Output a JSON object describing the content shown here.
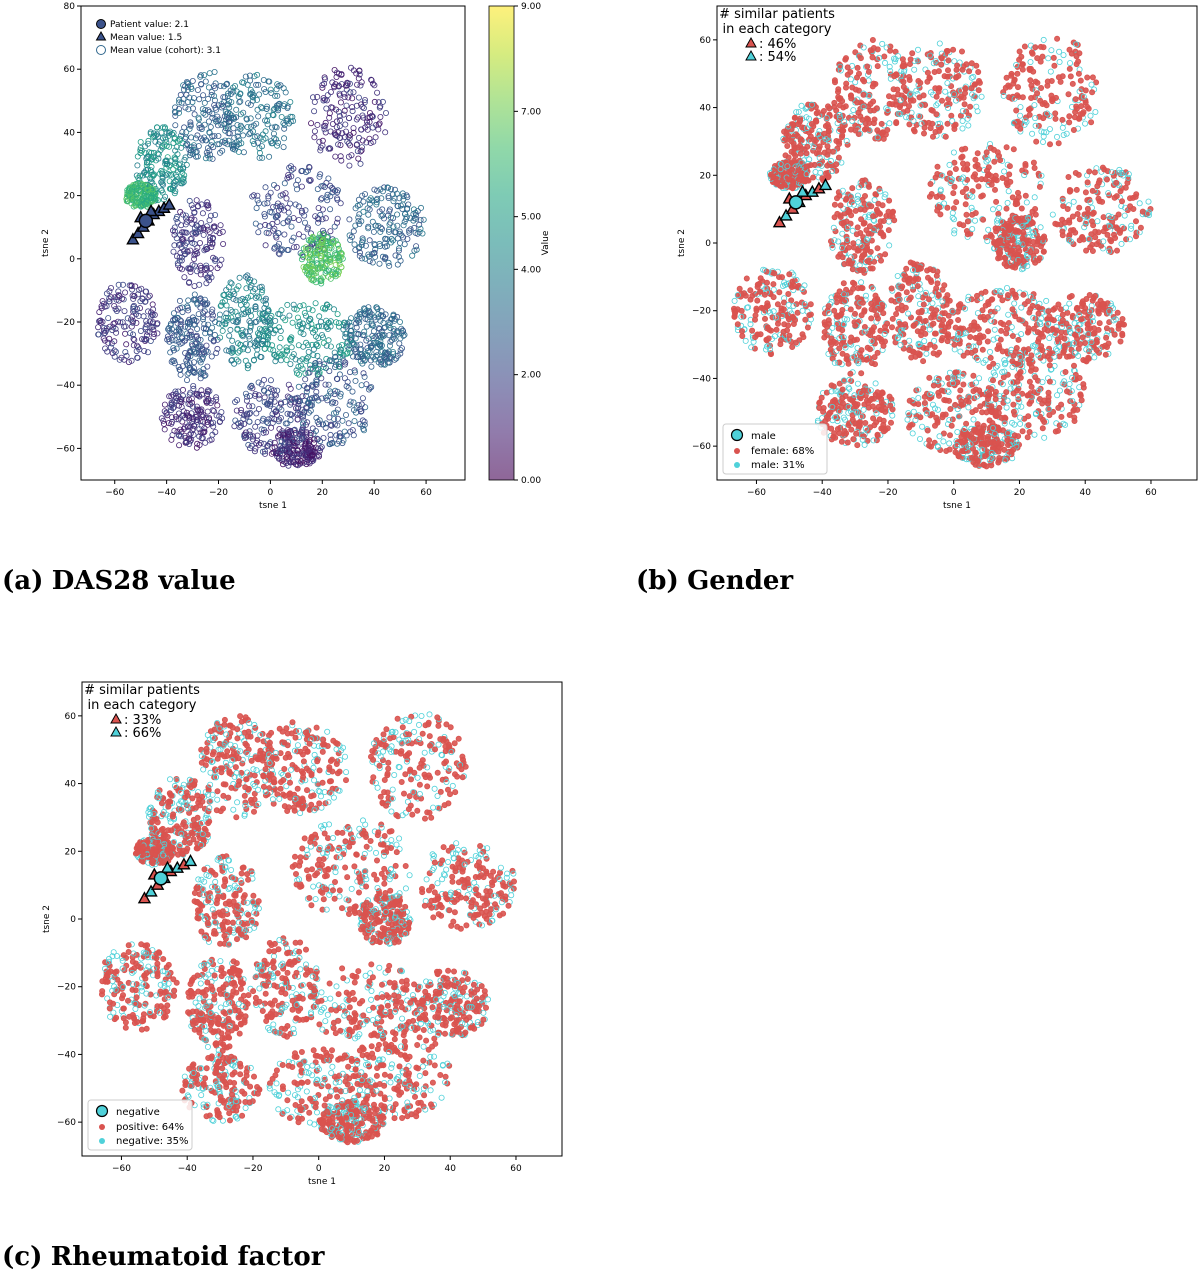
{
  "captions": {
    "a_label": "(a)",
    "a_text": "DAS28 value",
    "b_label": "(b)",
    "b_text": "Gender",
    "c_label": "(c)",
    "c_text": "Rheumatoid factor"
  },
  "chart_data": [
    {
      "id": "a",
      "type": "scatter",
      "xlabel": "tsne 1",
      "ylabel": "tsne 2",
      "xlim": [
        -73,
        75
      ],
      "ylim": [
        -70,
        80
      ],
      "xticks": [
        -60,
        -40,
        -20,
        0,
        20,
        40,
        60
      ],
      "yticks": [
        -60,
        -40,
        -20,
        0,
        20,
        40,
        60,
        80
      ],
      "colorbar": {
        "label": "Value",
        "range": [
          0,
          9
        ],
        "ticks": [
          "0.00",
          "2.00",
          "4.00",
          "5.00",
          "7.00",
          "9.00"
        ],
        "tick_values": [
          0,
          2,
          4,
          5,
          7,
          9
        ],
        "colormap": "viridis"
      },
      "legend": [
        "Patient value: 2.1",
        "Mean value: 1.5",
        "Mean value (cohort): 3.1"
      ],
      "legend_position": "top-left",
      "patient": {
        "x": -48,
        "y": 12,
        "value": 2.1
      },
      "similar_patients": [
        [
          -53,
          6
        ],
        [
          -51,
          8
        ],
        [
          -49,
          10
        ],
        [
          -47,
          12
        ],
        [
          -45,
          14
        ],
        [
          -43,
          15
        ],
        [
          -41,
          16
        ],
        [
          -39,
          17
        ],
        [
          -50,
          13
        ],
        [
          -46,
          15
        ]
      ],
      "clusters": [
        {
          "cx": 30,
          "cy": 45,
          "rx": 15,
          "ry": 16,
          "value": 1.2
        },
        {
          "cx": -5,
          "cy": 45,
          "rx": 14,
          "ry": 14,
          "value": 3.5
        },
        {
          "cx": -25,
          "cy": 45,
          "rx": 12,
          "ry": 15,
          "value": 3.0
        },
        {
          "cx": -42,
          "cy": 30,
          "rx": 10,
          "ry": 12,
          "value": 4.5
        },
        {
          "cx": -28,
          "cy": 5,
          "rx": 10,
          "ry": 14,
          "value": 1.5
        },
        {
          "cx": 10,
          "cy": 15,
          "rx": 18,
          "ry": 15,
          "value": 2.0
        },
        {
          "cx": 45,
          "cy": 10,
          "rx": 15,
          "ry": 13,
          "value": 3.0
        },
        {
          "cx": -55,
          "cy": -20,
          "rx": 12,
          "ry": 13,
          "value": 1.5
        },
        {
          "cx": -30,
          "cy": -25,
          "rx": 10,
          "ry": 14,
          "value": 2.5
        },
        {
          "cx": -10,
          "cy": -20,
          "rx": 10,
          "ry": 15,
          "value": 4.0
        },
        {
          "cx": 15,
          "cy": -25,
          "rx": 18,
          "ry": 12,
          "value": 4.5
        },
        {
          "cx": 40,
          "cy": -25,
          "rx": 12,
          "ry": 10,
          "value": 3.0
        },
        {
          "cx": -30,
          "cy": -50,
          "rx": 12,
          "ry": 10,
          "value": 1.2
        },
        {
          "cx": 0,
          "cy": -50,
          "rx": 15,
          "ry": 12,
          "value": 1.8
        },
        {
          "cx": 25,
          "cy": -45,
          "rx": 15,
          "ry": 14,
          "value": 2.5
        },
        {
          "cx": 10,
          "cy": -60,
          "rx": 10,
          "ry": 6,
          "value": 1.0
        },
        {
          "cx": -50,
          "cy": 20,
          "rx": 6,
          "ry": 4,
          "value": 6.0
        },
        {
          "cx": 20,
          "cy": 0,
          "rx": 8,
          "ry": 8,
          "value": 6.5
        }
      ]
    },
    {
      "id": "b",
      "type": "scatter",
      "xlabel": "tsne 1",
      "ylabel": "tsne 2",
      "xlim": [
        -72,
        74
      ],
      "ylim": [
        -70,
        70
      ],
      "xticks": [
        -60,
        -40,
        -20,
        0,
        20,
        40,
        60
      ],
      "yticks": [
        -60,
        -40,
        -20,
        0,
        20,
        40,
        60
      ],
      "annotation_title": "# similar patients in each category",
      "annotation_lines": [
        ": 46%",
        ": 54%"
      ],
      "annotation_colors": [
        "#d9534f",
        "#4fd1d9"
      ],
      "legend": [
        "male",
        "female: 68%",
        "male: 31%"
      ],
      "legend_colors": [
        "#4fd1d9",
        "#d9534f",
        "#4fd1d9"
      ],
      "legend_position": "bottom-left",
      "categories": [
        {
          "name": "female",
          "share": 68
        },
        {
          "name": "male",
          "share": 31
        }
      ],
      "patient": {
        "x": -48,
        "y": 12,
        "category": "male"
      },
      "similar_patients": [
        [
          -53,
          6
        ],
        [
          -51,
          8
        ],
        [
          -49,
          10
        ],
        [
          -47,
          12
        ],
        [
          -45,
          14
        ],
        [
          -43,
          15
        ],
        [
          -41,
          16
        ],
        [
          -39,
          17
        ],
        [
          -50,
          13
        ],
        [
          -46,
          15
        ]
      ]
    },
    {
      "id": "c",
      "type": "scatter",
      "xlabel": "tsne 1",
      "ylabel": "tsne 2",
      "xlim": [
        -72,
        74
      ],
      "ylim": [
        -70,
        70
      ],
      "xticks": [
        -60,
        -40,
        -20,
        0,
        20,
        40,
        60
      ],
      "yticks": [
        -60,
        -40,
        -20,
        0,
        20,
        40,
        60
      ],
      "annotation_title": "# similar patients in each category",
      "annotation_lines": [
        ": 33%",
        ": 66%"
      ],
      "annotation_colors": [
        "#d9534f",
        "#4fd1d9"
      ],
      "legend": [
        "negative",
        "positive: 64%",
        "negative: 35%"
      ],
      "legend_colors": [
        "#4fd1d9",
        "#d9534f",
        "#4fd1d9"
      ],
      "legend_position": "bottom-left",
      "categories": [
        {
          "name": "positive",
          "share": 64
        },
        {
          "name": "negative",
          "share": 35
        }
      ],
      "patient": {
        "x": -48,
        "y": 12,
        "category": "negative"
      },
      "similar_patients": [
        [
          -53,
          6
        ],
        [
          -51,
          8
        ],
        [
          -49,
          10
        ],
        [
          -47,
          12
        ],
        [
          -45,
          14
        ],
        [
          -43,
          15
        ],
        [
          -41,
          16
        ],
        [
          -39,
          17
        ],
        [
          -50,
          13
        ],
        [
          -46,
          15
        ]
      ]
    }
  ]
}
